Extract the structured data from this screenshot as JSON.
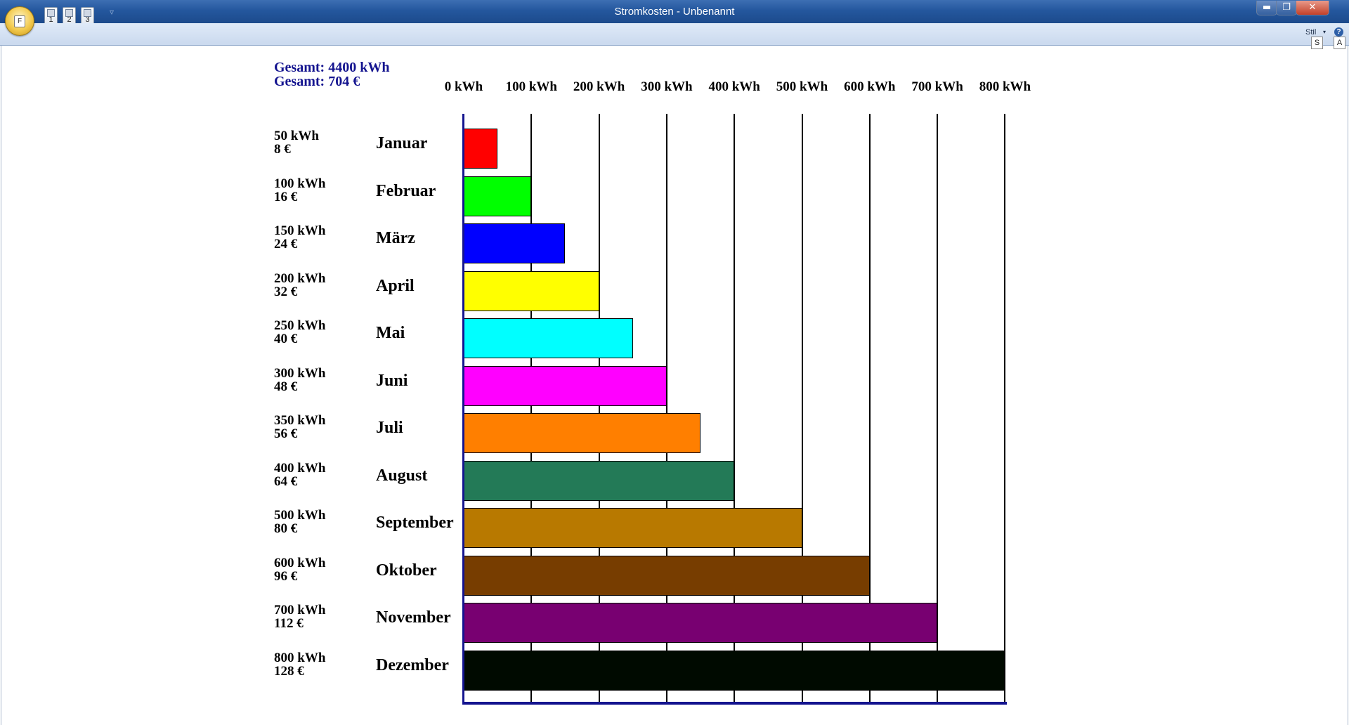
{
  "window": {
    "title": "Stromkosten - Unbenannt",
    "app_button_key": "F",
    "quick_access_keys": [
      "1",
      "2",
      "3"
    ],
    "controls": {
      "minimize": "▬",
      "maximize": "❐",
      "close": "✕"
    }
  },
  "ribbon": {
    "stil_label": "Stil",
    "help_glyph": "?",
    "keytips": [
      "S",
      "A"
    ]
  },
  "totals": {
    "kwh": "Gesamt: 4400 kWh",
    "eur": "Gesamt: 704 €"
  },
  "chart_data": {
    "type": "bar",
    "orientation": "horizontal",
    "x_ticks": [
      "0 kWh",
      "100 kWh",
      "200 kWh",
      "300 kWh",
      "400 kWh",
      "500 kWh",
      "600 kWh",
      "700 kWh",
      "800 kWh"
    ],
    "xlim": [
      0,
      800
    ],
    "grid": true,
    "rows": [
      {
        "category": "Januar",
        "kwh": 50,
        "kwh_label": "50 kWh",
        "eur_label": "8 €",
        "color": "#ff0000"
      },
      {
        "category": "Februar",
        "kwh": 100,
        "kwh_label": "100 kWh",
        "eur_label": "16 €",
        "color": "#00ff00"
      },
      {
        "category": "März",
        "kwh": 150,
        "kwh_label": "150 kWh",
        "eur_label": "24 €",
        "color": "#0000ff"
      },
      {
        "category": "April",
        "kwh": 200,
        "kwh_label": "200 kWh",
        "eur_label": "32 €",
        "color": "#ffff00"
      },
      {
        "category": "Mai",
        "kwh": 250,
        "kwh_label": "250 kWh",
        "eur_label": "40 €",
        "color": "#00ffff"
      },
      {
        "category": "Juni",
        "kwh": 300,
        "kwh_label": "300 kWh",
        "eur_label": "48 €",
        "color": "#ff00ff"
      },
      {
        "category": "Juli",
        "kwh": 350,
        "kwh_label": "350 kWh",
        "eur_label": "56 €",
        "color": "#ff7f00"
      },
      {
        "category": "August",
        "kwh": 400,
        "kwh_label": "400 kWh",
        "eur_label": "64 €",
        "color": "#237a57"
      },
      {
        "category": "September",
        "kwh": 500,
        "kwh_label": "500 kWh",
        "eur_label": "80 €",
        "color": "#b87900"
      },
      {
        "category": "Oktober",
        "kwh": 600,
        "kwh_label": "600 kWh",
        "eur_label": "96 €",
        "color": "#773d00"
      },
      {
        "category": "November",
        "kwh": 700,
        "kwh_label": "700 kWh",
        "eur_label": "112 €",
        "color": "#780071"
      },
      {
        "category": "Dezember",
        "kwh": 800,
        "kwh_label": "800 kWh",
        "eur_label": "128 €",
        "color": "#000a00"
      }
    ]
  }
}
